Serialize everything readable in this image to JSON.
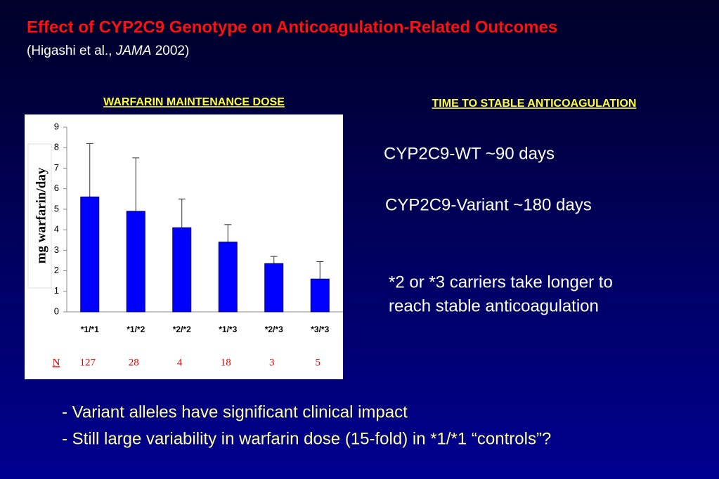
{
  "header": {
    "title": "Effect of CYP2C9 Genotype on Anticoagulation-Related Outcomes",
    "citation": [
      "(Higashi et al., ",
      "JAMA",
      " 2002)"
    ]
  },
  "chart_data": {
    "type": "bar",
    "title": "WARFARIN MAINTENANCE DOSE",
    "ylabel": "mg warfarin/day",
    "categories": [
      "*1/*1",
      "*1/*2",
      "*2/*2",
      "*1/*3",
      "*2/*3",
      "*3/*3"
    ],
    "values": [
      5.6,
      4.9,
      4.1,
      3.4,
      2.35,
      1.6
    ],
    "errors": [
      2.6,
      2.6,
      1.4,
      0.85,
      0.35,
      0.85
    ],
    "color": "#0000ff",
    "ylim": [
      0,
      9
    ],
    "yticks": [
      0,
      1,
      2,
      3,
      4,
      5,
      6,
      7,
      8,
      9
    ],
    "n_label": "N",
    "n_values": [
      127,
      28,
      4,
      18,
      3,
      5
    ]
  },
  "stable": {
    "title": "TIME TO STABLE ANTICOAGULATION",
    "items": [
      "CYP2C9-WT ~90 days",
      "CYP2C9-Variant ~180 days"
    ],
    "note": [
      "*2 or *3 carriers take longer to",
      "reach stable anticoagulation"
    ]
  },
  "bullets": [
    "- Variant alleles have significant clinical impact",
    "- Still large variability in warfarin dose (15-fold) in *1/*1 “controls”?"
  ]
}
